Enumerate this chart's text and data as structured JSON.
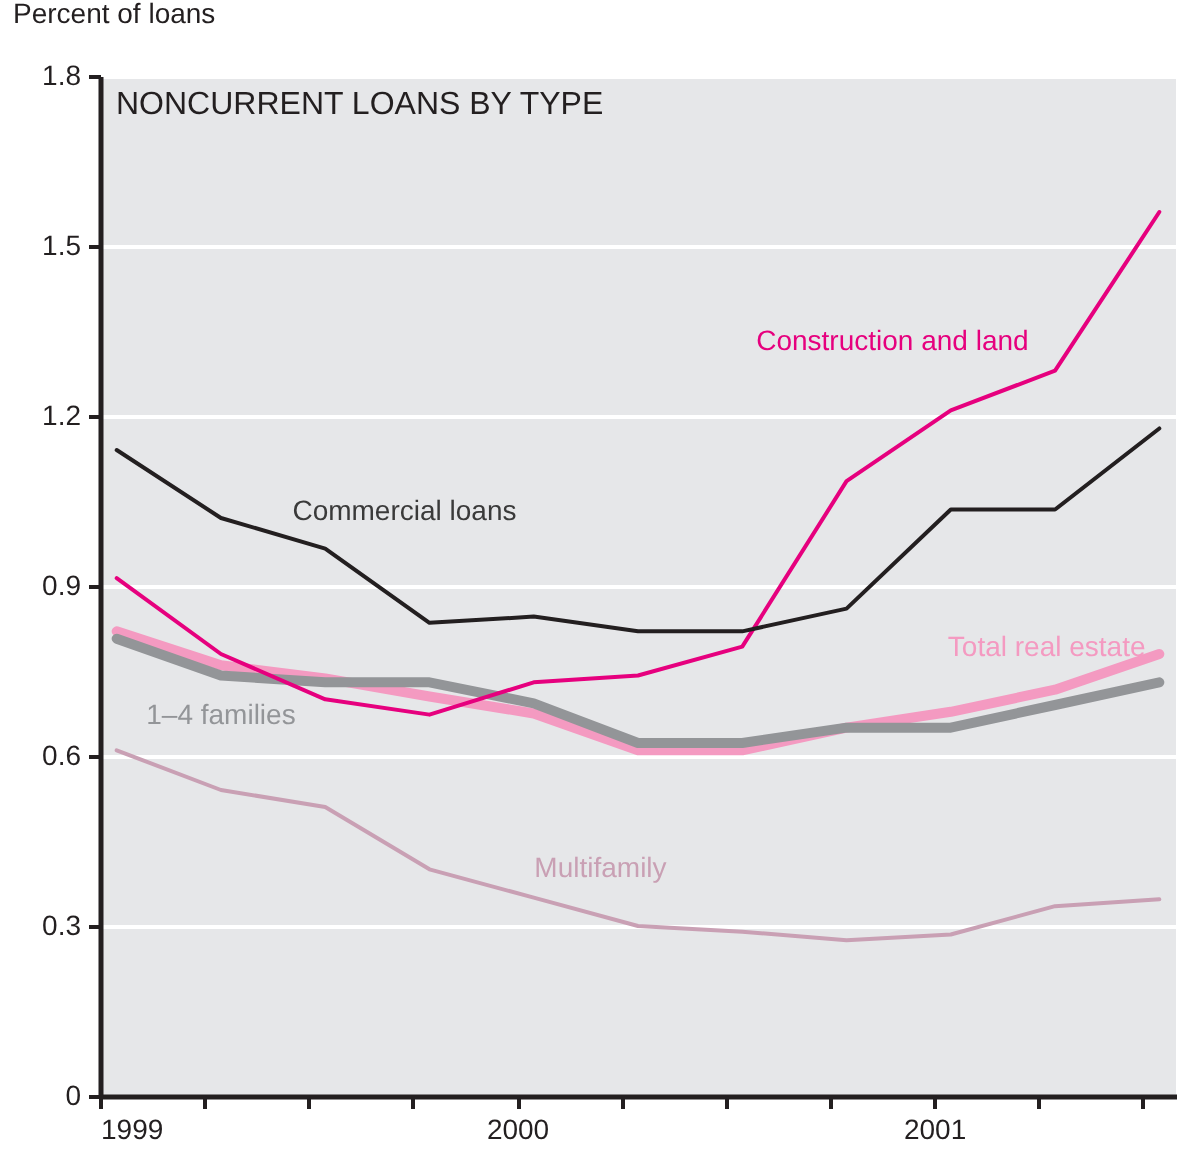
{
  "chart_data": {
    "type": "line",
    "title": "NONCURRENT LOANS BY TYPE",
    "ylabel": "Percent of loans",
    "x": [
      1999.04,
      1999.29,
      1999.54,
      1999.79,
      2000.04,
      2000.29,
      2000.54,
      2000.79,
      2001.04,
      2001.29,
      2001.54
    ],
    "series": [
      {
        "name": "Multifamily",
        "color": "#c9a0b4",
        "values": [
          0.61,
          0.54,
          0.51,
          0.4,
          0.35,
          0.3,
          0.29,
          0.275,
          0.285,
          0.335,
          0.347
        ]
      },
      {
        "name": "Total real estate",
        "color": "#f49ac1",
        "values": [
          0.82,
          0.76,
          0.737,
          0.705,
          0.675,
          0.61,
          0.61,
          0.65,
          0.678,
          0.717,
          0.78
        ]
      },
      {
        "name": "1–4 families",
        "color": "#939598",
        "values": [
          0.807,
          0.742,
          0.73,
          0.73,
          0.693,
          0.623,
          0.623,
          0.65,
          0.65,
          0.69,
          0.73
        ]
      },
      {
        "name": "Construction and land",
        "color": "#e6007e",
        "values": [
          0.914,
          0.78,
          0.7,
          0.673,
          0.73,
          0.742,
          0.793,
          1.085,
          1.21,
          1.28,
          1.56
        ]
      },
      {
        "name": "Commercial loans",
        "color": "#231f20",
        "values": [
          1.14,
          1.02,
          0.966,
          0.835,
          0.846,
          0.82,
          0.82,
          0.86,
          1.035,
          1.035,
          1.178
        ]
      }
    ],
    "xlim": [
      1999,
      2001.58
    ],
    "xticks": [
      1999,
      {
        "value": 1999.25,
        "label": null
      },
      {
        "value": 1999.5,
        "label": null
      },
      {
        "value": 1999.75,
        "label": null
      },
      2000,
      {
        "value": 2000.25,
        "label": null
      },
      {
        "value": 2000.5,
        "label": null
      },
      {
        "value": 2000.75,
        "label": null
      },
      2001,
      {
        "value": 2001.25,
        "label": null
      },
      {
        "value": 2001.5,
        "label": null
      }
    ],
    "ylim": [
      0,
      1.8
    ],
    "yticks": [
      0,
      0.3,
      0.6,
      0.9,
      1.2,
      1.5,
      1.8
    ],
    "grid": "y",
    "line_style": "solid",
    "marker": "none"
  }
}
